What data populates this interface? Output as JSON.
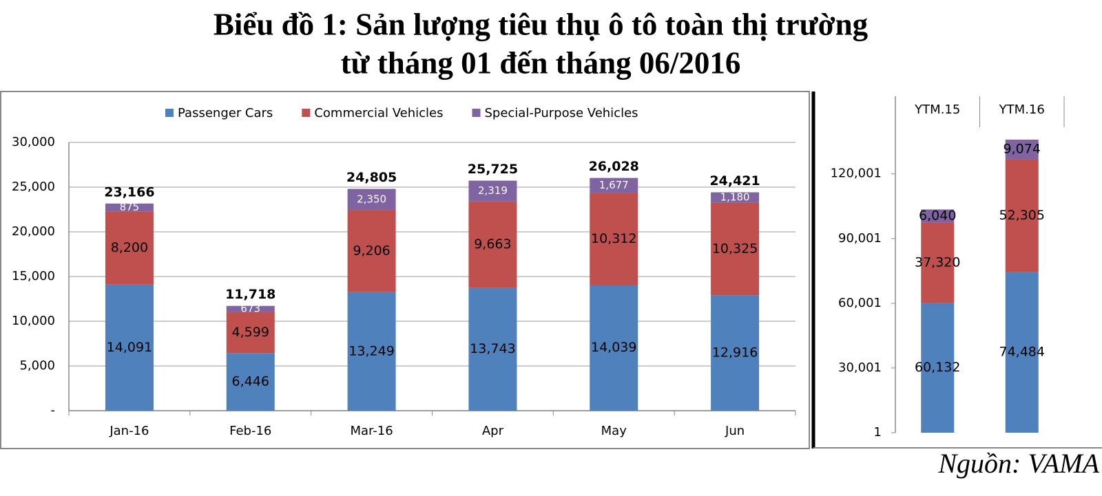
{
  "title": [
    "Biểu đồ 1: Sản lượng tiêu thụ ô tô toàn thị trường",
    "từ tháng 01 đến tháng 06/2016"
  ],
  "source": "Nguồn: VAMA",
  "chart_data": [
    {
      "type": "stacked-bar",
      "categories": [
        "Jan-16",
        "Feb-16",
        "Mar-16",
        "Apr",
        "May",
        "Jun"
      ],
      "series": [
        {
          "name": "Passenger Cars",
          "color": "#4f81bd",
          "values": [
            14091,
            6446,
            13249,
            13743,
            14039,
            12916
          ],
          "value_labels": [
            "14,091",
            "6,446",
            "13,249",
            "13,743",
            "14,039",
            "12,916"
          ]
        },
        {
          "name": "Commercial Vehicles",
          "color": "#c0504d",
          "values": [
            8200,
            4599,
            9206,
            9663,
            10312,
            10325
          ],
          "value_labels": [
            "8,200",
            "4,599",
            "9,206",
            "9,663",
            "10,312",
            "10,325"
          ]
        },
        {
          "name": "Special-Purpose Vehicles",
          "color": "#8064a2",
          "values": [
            875,
            673,
            2350,
            2319,
            1677,
            1180
          ],
          "value_labels": [
            "875",
            "673",
            "2,350",
            "2,319",
            "1,677",
            "1,180"
          ]
        }
      ],
      "totals": [
        23166,
        11718,
        24805,
        25725,
        26028,
        24421
      ],
      "total_labels": [
        "23,166",
        "11,718",
        "24,805",
        "25,725",
        "26,028",
        "24,421"
      ],
      "ylim": [
        0,
        30000
      ],
      "yticks": [
        {
          "value": 0,
          "label": "-"
        },
        {
          "value": 5000,
          "label": "5,000"
        },
        {
          "value": 10000,
          "label": "10,000"
        },
        {
          "value": 15000,
          "label": "15,000"
        },
        {
          "value": 20000,
          "label": "20,000"
        },
        {
          "value": 25000,
          "label": "25,000"
        },
        {
          "value": 30000,
          "label": "30,000"
        }
      ],
      "grid": true,
      "legend": "top"
    },
    {
      "type": "stacked-bar",
      "categories": [
        "YTM.15",
        "YTM.16"
      ],
      "series": [
        {
          "color": "#4f81bd",
          "values": [
            60132,
            74484
          ],
          "value_labels": [
            "60,132",
            "74,484"
          ]
        },
        {
          "color": "#c0504d",
          "values": [
            37320,
            52305
          ],
          "value_labels": [
            "37,320",
            "52,305"
          ]
        },
        {
          "color": "#8064a2",
          "values": [
            6040,
            9074
          ],
          "value_labels": [
            "6,040",
            "9,074"
          ]
        }
      ],
      "ylim": [
        1,
        140001
      ],
      "yticks": [
        1,
        {
          "value": 30001,
          "label": "30,001"
        },
        {
          "value": 60001,
          "label": "60,001"
        },
        {
          "value": 90001,
          "label": "90,001"
        },
        {
          "value": 120001,
          "label": "120,001"
        }
      ],
      "grid": false
    }
  ]
}
